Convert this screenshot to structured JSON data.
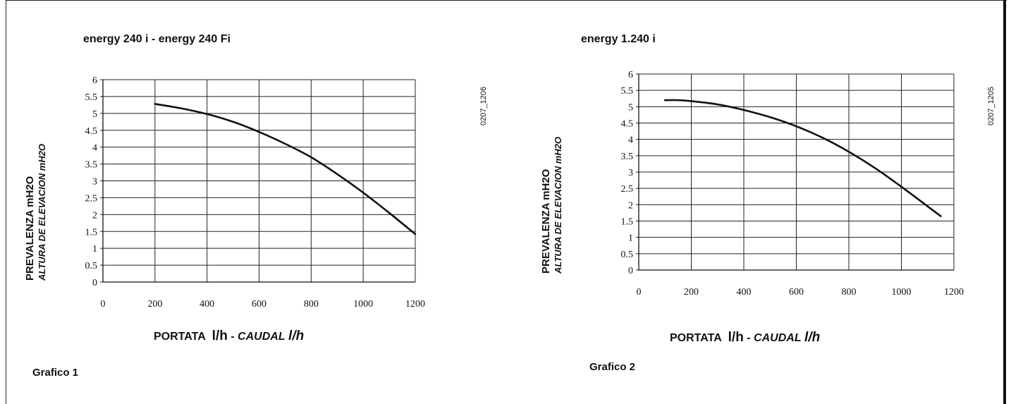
{
  "charts": [
    {
      "title": "energy 240 i - energy 240 Fi",
      "code": "0207_1206",
      "caption": "Grafico 1",
      "ylabel_1": "PREVALENZA mH2O",
      "ylabel_2": "ALTURA DE ELEVACION mH2O",
      "xlabel_main": "PORTATA",
      "xlabel_unit": "l/h",
      "xlabel_sep": " - ",
      "xlabel_alt": "CAUDAL",
      "xlabel_alt_unit": "l/h"
    },
    {
      "title": "energy 1.240 i",
      "code": "0207_1205",
      "caption": "Grafico 2",
      "ylabel_1": "PREVALENZA mH2O",
      "ylabel_2": "ALTURA DE ELEVACION mH2O",
      "xlabel_main": "PORTATA",
      "xlabel_unit": "l/h",
      "xlabel_sep": " - ",
      "xlabel_alt": "CAUDAL",
      "xlabel_alt_unit": "l/h"
    }
  ],
  "chart_data": [
    {
      "type": "line",
      "title": "energy 240 i - energy 240 Fi",
      "xlabel": "PORTATA l/h - CAUDAL l/h",
      "ylabel": "PREVALENZA mH2O / ALTURA DE ELEVACION mH2O",
      "xlim": [
        0,
        1200
      ],
      "ylim": [
        0,
        6
      ],
      "xticks": [
        "0",
        "200",
        "400",
        "600",
        "800",
        "1000",
        "1200"
      ],
      "yticks": [
        "0",
        "0.5",
        "1",
        "1.5",
        "2",
        "2.5",
        "3",
        "3.5",
        "4",
        "4.5",
        "5",
        "5.5",
        "6"
      ],
      "grid": true,
      "series": [
        {
          "x": [
            200,
            300,
            400,
            500,
            600,
            700,
            800,
            900,
            1000,
            1100,
            1200
          ],
          "y": [
            5.28,
            5.15,
            4.98,
            4.75,
            4.45,
            4.1,
            3.7,
            3.2,
            2.65,
            2.05,
            1.42
          ]
        }
      ]
    },
    {
      "type": "line",
      "title": "energy 1.240 i",
      "xlabel": "PORTATA l/h - CAUDAL l/h",
      "ylabel": "PREVALENZA mH2O / ALTURA DE ELEVACION mH2O",
      "xlim": [
        0,
        1200
      ],
      "ylim": [
        0,
        6
      ],
      "xticks": [
        "0",
        "200",
        "400",
        "600",
        "800",
        "1000",
        "1200"
      ],
      "yticks": [
        "0",
        "0.5",
        "1",
        "1.5",
        "2",
        "2.5",
        "3",
        "3.5",
        "4",
        "4.5",
        "5",
        "5.5",
        "6"
      ],
      "grid": true,
      "series": [
        {
          "x": [
            100,
            150,
            200,
            300,
            400,
            500,
            600,
            700,
            800,
            900,
            1000,
            1100,
            1150
          ],
          "y": [
            5.2,
            5.2,
            5.17,
            5.07,
            4.9,
            4.68,
            4.4,
            4.05,
            3.62,
            3.12,
            2.55,
            1.95,
            1.65
          ]
        }
      ]
    }
  ]
}
